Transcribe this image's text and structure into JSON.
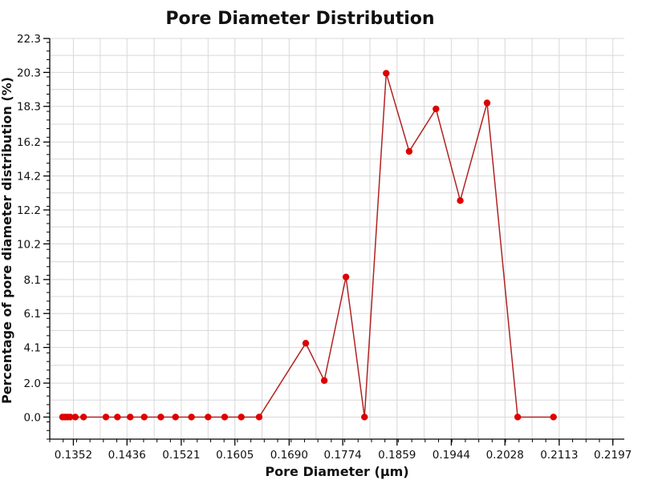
{
  "chart_data": {
    "type": "line",
    "title": "Pore Diameter Distribution",
    "xlabel": "Pore Diameter (μm)",
    "ylabel": "Percentage of pore diameter distribution (%)",
    "x_ticks": [
      "0.1352",
      "0.1436",
      "0.1521",
      "0.1605",
      "0.1690",
      "0.1774",
      "0.1859",
      "0.1944",
      "0.2028",
      "0.2113",
      "0.2197"
    ],
    "y_ticks": [
      "0.0",
      "2.0",
      "4.1",
      "6.1",
      "8.1",
      "10.2",
      "12.2",
      "14.2",
      "16.2",
      "18.3",
      "20.3",
      "22.3"
    ],
    "xlim": [
      0.1315,
      0.2215
    ],
    "ylim": [
      -1.3,
      22.3
    ],
    "grid": true,
    "series_color": "#b22222",
    "marker_color": "#dd0000",
    "series": [
      {
        "x": [
          0.1335,
          0.1339,
          0.1343,
          0.1347,
          0.1355,
          0.1368,
          0.1403,
          0.1421,
          0.1441,
          0.1463,
          0.1489,
          0.1512,
          0.1537,
          0.1563,
          0.1589,
          0.1615,
          0.1643,
          0.1716,
          0.1745,
          0.1779,
          0.1808,
          0.1842,
          0.1878,
          0.192,
          0.1958,
          0.2,
          0.2048,
          0.2104
        ],
        "y": [
          0.0,
          0.0,
          0.0,
          0.0,
          0.0,
          0.0,
          0.0,
          0.0,
          0.0,
          0.0,
          0.0,
          0.0,
          0.0,
          0.0,
          0.0,
          0.0,
          0.0,
          4.35,
          2.15,
          8.25,
          0.0,
          20.25,
          15.65,
          18.15,
          12.75,
          18.5,
          0.0,
          0.0
        ]
      }
    ]
  }
}
